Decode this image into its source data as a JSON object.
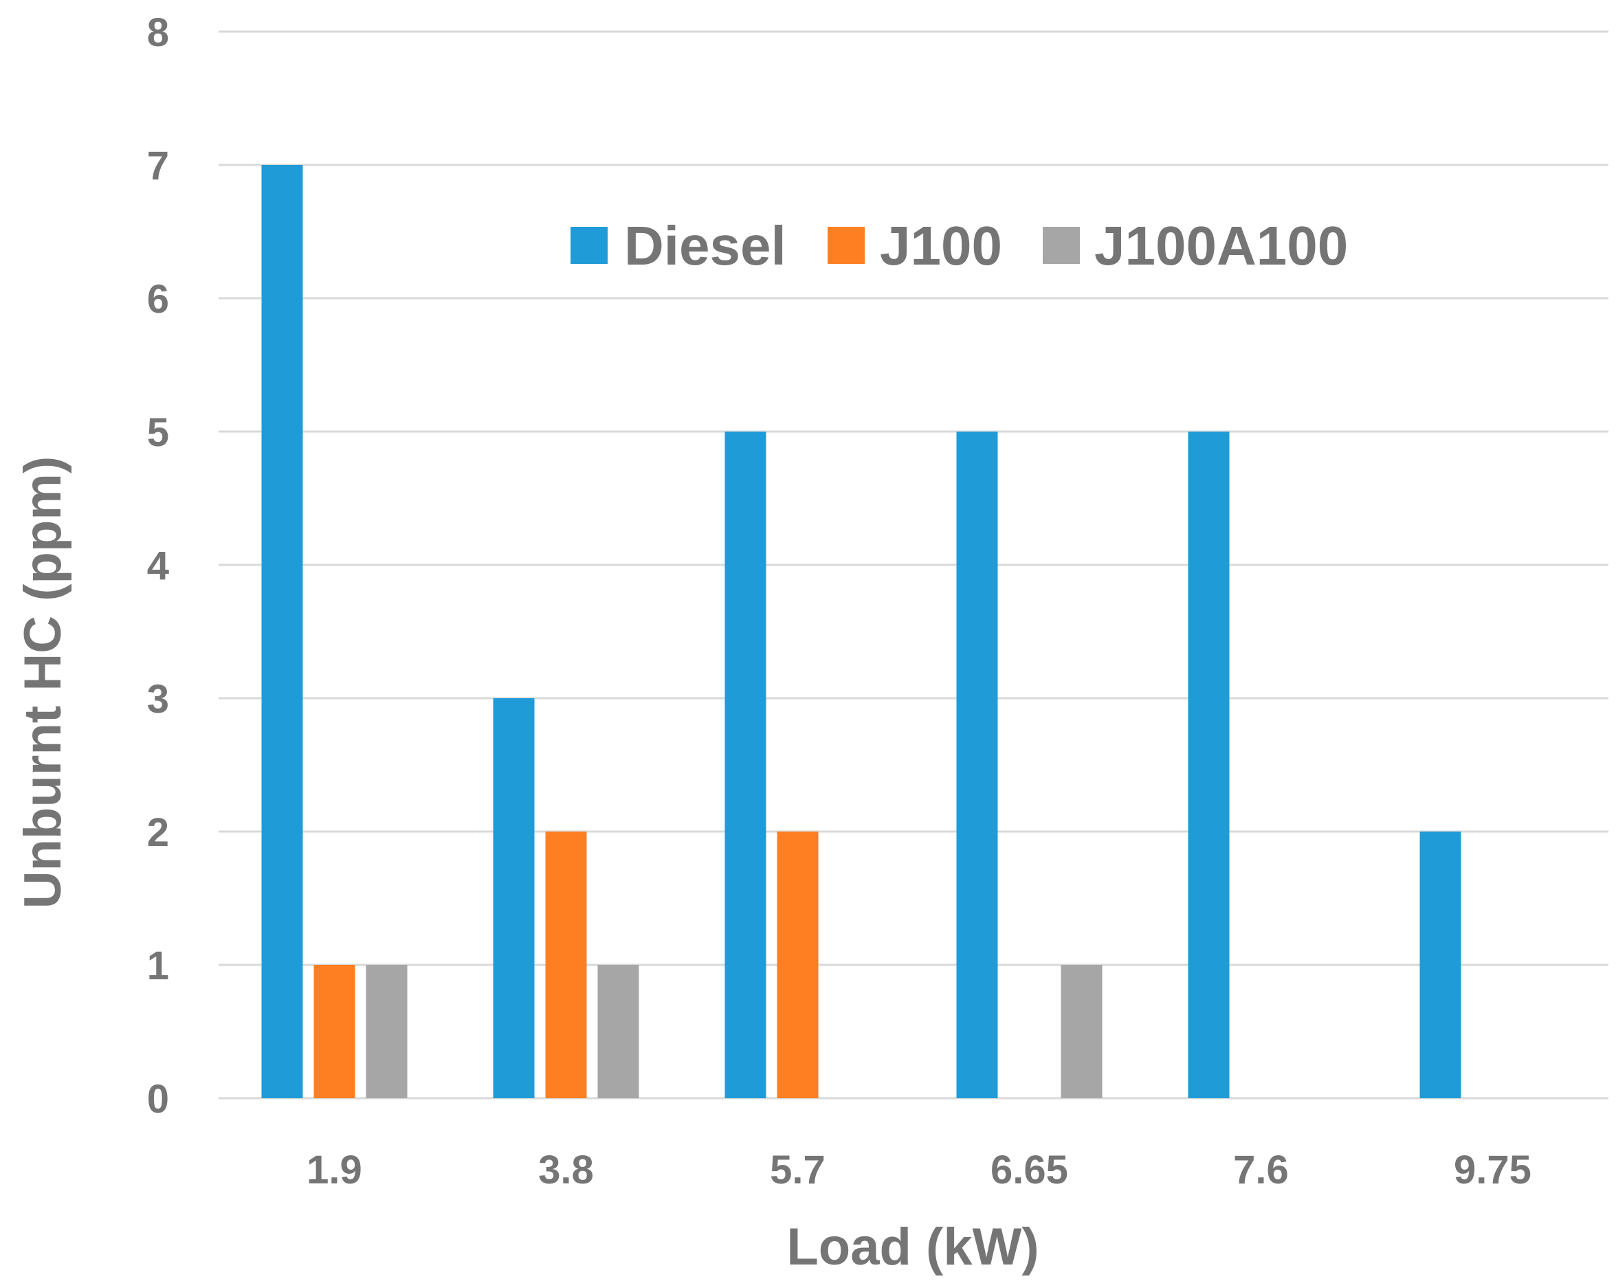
{
  "chart_data": {
    "type": "bar",
    "title": "",
    "xlabel": "Load (kW)",
    "ylabel": "Unburnt HC (ppm)",
    "ylim": [
      0,
      8
    ],
    "yticks": [
      "0",
      "1",
      "2",
      "3",
      "4",
      "5",
      "6",
      "7",
      "8"
    ],
    "grid": true,
    "legend_position": "top-center",
    "categories": [
      "1.9",
      "3.8",
      "5.7",
      "6.65",
      "7.6",
      "9.75"
    ],
    "series": [
      {
        "name": "Diesel",
        "color": "#1f9bd7",
        "values": [
          7,
          3,
          5,
          5,
          5,
          2
        ]
      },
      {
        "name": "J100",
        "color": "#fd7f22",
        "values": [
          1,
          2,
          2,
          0,
          0,
          0
        ]
      },
      {
        "name": "J100A100",
        "color": "#a6a6a6",
        "values": [
          1,
          1,
          0,
          1,
          0,
          0
        ]
      }
    ]
  }
}
